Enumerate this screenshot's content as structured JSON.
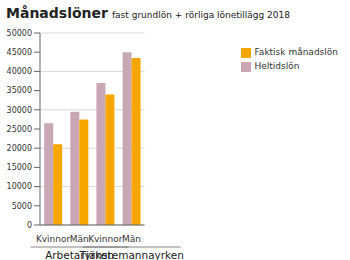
{
  "chart_data": {
    "type": "bar",
    "title": "Månadslöner",
    "subtitle": "fast grundlön + rörliga lönetillägg 2018",
    "categories": [
      "Kvinnor",
      "Män",
      "Kvinnor",
      "Män"
    ],
    "groups": [
      "Arbetaryrken",
      "Arbetaryrken",
      "Tjänstemannayrken",
      "Tjänstemannayrken"
    ],
    "series": [
      {
        "name": "Heltidslön",
        "color": "#c9a7b5",
        "values": [
          26500,
          29500,
          37000,
          45000
        ]
      },
      {
        "name": "Faktisk månadslön",
        "color": "#f7a600",
        "values": [
          21000,
          27500,
          34000,
          43500
        ]
      }
    ],
    "ylim": [
      0,
      50000
    ],
    "yticks": [
      0,
      5000,
      10000,
      15000,
      20000,
      25000,
      30000,
      35000,
      40000,
      45000,
      50000
    ],
    "grid": true,
    "legend": "right"
  }
}
